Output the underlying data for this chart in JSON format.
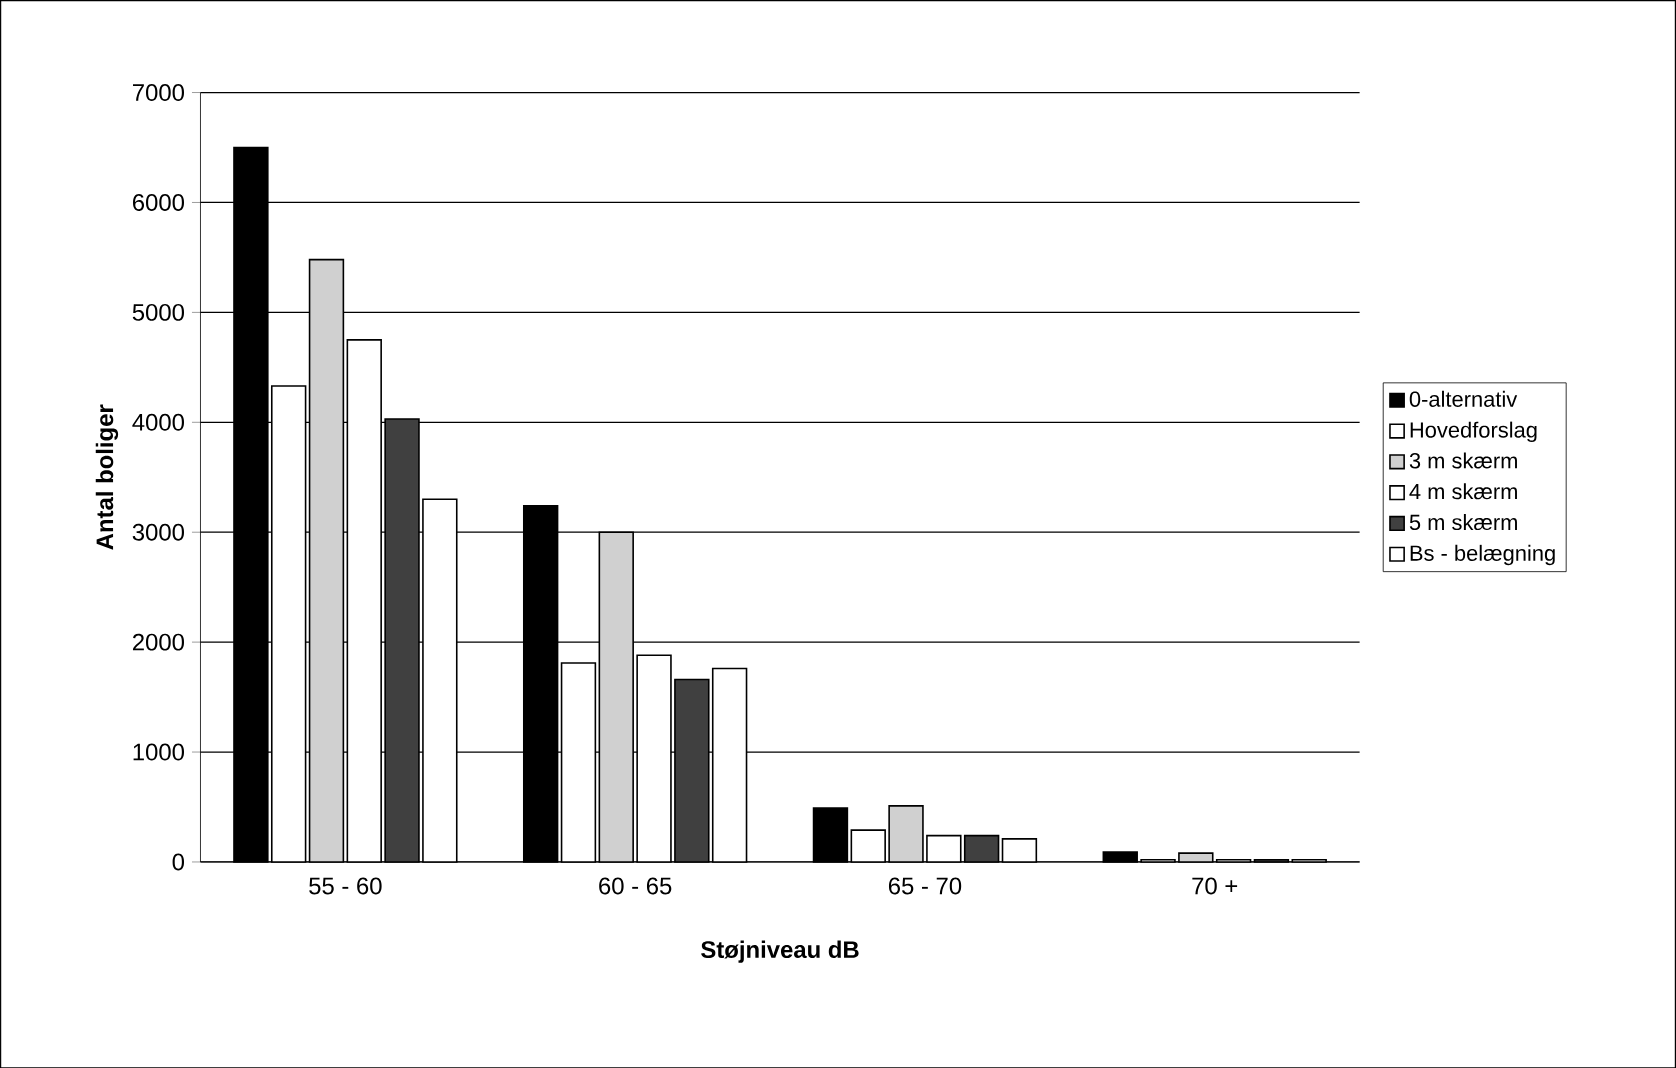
{
  "chart_data": {
    "type": "bar",
    "xlabel": "Støjniveau dB",
    "ylabel": "Antal boliger",
    "categories": [
      "55 - 60",
      "60 - 65",
      "65 - 70",
      "70 +"
    ],
    "series": [
      {
        "name": "0-alternativ",
        "color": "#000000",
        "values": [
          6500,
          3240,
          490,
          90
        ]
      },
      {
        "name": "Hovedforslag",
        "color": "#ffffff",
        "values": [
          4330,
          1810,
          290,
          20
        ]
      },
      {
        "name": "3 m skærm",
        "color": "#d0d0d0",
        "values": [
          5480,
          3000,
          510,
          80
        ]
      },
      {
        "name": "4 m skærm",
        "color": "#ffffff",
        "values": [
          4750,
          1880,
          240,
          20
        ]
      },
      {
        "name": "5 m skærm",
        "color": "#404040",
        "values": [
          4030,
          1660,
          240,
          20
        ]
      },
      {
        "name": "Bs - belægning",
        "color": "#ffffff",
        "values": [
          3300,
          1760,
          210,
          20
        ]
      }
    ],
    "ylim": [
      0,
      7000
    ],
    "yticks": [
      0,
      1000,
      2000,
      3000,
      4000,
      5000,
      6000,
      7000
    ],
    "grid": "y",
    "legend": "right"
  }
}
